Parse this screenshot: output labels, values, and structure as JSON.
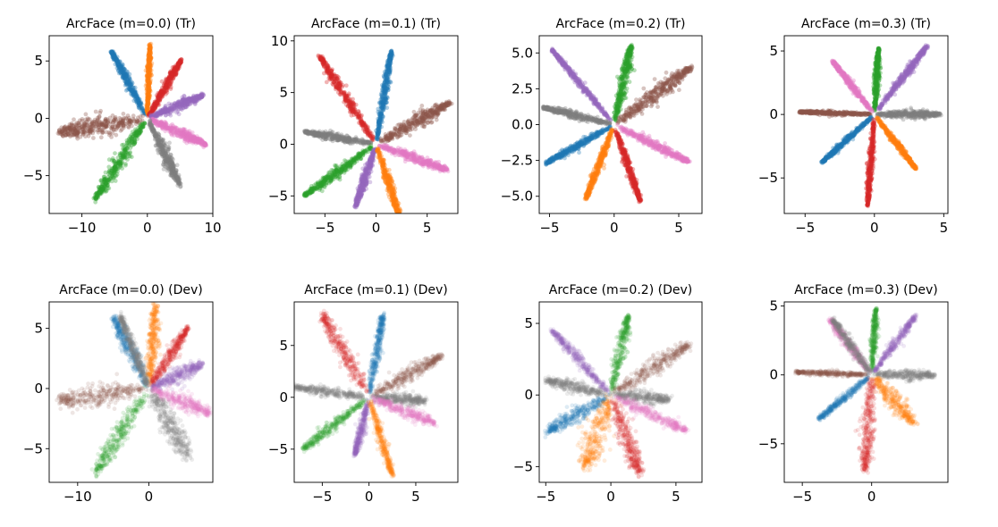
{
  "figure": {
    "background": "#ffffff"
  },
  "colors": {
    "blue": "#1f77b4",
    "orange": "#ff7f0e",
    "green": "#2ca02c",
    "red": "#d62728",
    "purple": "#9467bd",
    "brown": "#8c564b",
    "pink": "#e377c2",
    "gray": "#7f7f7f"
  },
  "chart_data": [
    {
      "type": "scatter",
      "title": "ArcFace (m=0.0) (Tr)",
      "xlim": [
        -15,
        10
      ],
      "ylim": [
        -8.3,
        7.2
      ],
      "xticks": [
        -10,
        0,
        10
      ],
      "yticks": [
        -5,
        0,
        5
      ],
      "alpha": 0.35,
      "series": [
        {
          "name": "class-blue",
          "color": "blue",
          "tip": [
            -5.5,
            5.8
          ],
          "halfwidth": 0.55,
          "noise": 0.25
        },
        {
          "name": "class-orange",
          "color": "orange",
          "tip": [
            0.4,
            6.5
          ],
          "halfwidth": 0.4,
          "noise": 0.2
        },
        {
          "name": "class-red",
          "color": "red",
          "tip": [
            5.2,
            5.1
          ],
          "halfwidth": 0.55,
          "noise": 0.25
        },
        {
          "name": "class-purple",
          "color": "purple",
          "tip": [
            8.5,
            2.0
          ],
          "halfwidth": 0.55,
          "noise": 0.25
        },
        {
          "name": "class-pink",
          "color": "pink",
          "tip": [
            9.0,
            -2.3
          ],
          "halfwidth": 0.55,
          "noise": 0.25
        },
        {
          "name": "class-gray",
          "color": "gray",
          "tip": [
            5.0,
            -5.8
          ],
          "halfwidth": 0.8,
          "noise": 0.3
        },
        {
          "name": "class-green",
          "color": "green",
          "tip": [
            -8.0,
            -7.0
          ],
          "halfwidth": 1.0,
          "noise": 0.35
        },
        {
          "name": "class-brown",
          "color": "brown",
          "tip": [
            -13.5,
            -1.2
          ],
          "halfwidth": 1.2,
          "noise": 0.4
        }
      ]
    },
    {
      "type": "scatter",
      "title": "ArcFace (m=0.1) (Tr)",
      "xlim": [
        -8,
        8
      ],
      "ylim": [
        -6.7,
        10.5
      ],
      "xticks": [
        -5,
        0,
        5
      ],
      "yticks": [
        -5,
        0,
        5,
        10
      ],
      "alpha": 0.35,
      "series": [
        {
          "name": "class-blue",
          "color": "blue",
          "tip": [
            1.5,
            9.0
          ],
          "halfwidth": 0.4,
          "noise": 0.2
        },
        {
          "name": "class-red",
          "color": "red",
          "tip": [
            -5.5,
            8.5
          ],
          "halfwidth": 0.55,
          "noise": 0.25
        },
        {
          "name": "class-brown",
          "color": "brown",
          "tip": [
            7.2,
            4.0
          ],
          "halfwidth": 0.8,
          "noise": 0.3
        },
        {
          "name": "class-gray",
          "color": "gray",
          "tip": [
            -7.0,
            1.2
          ],
          "halfwidth": 0.45,
          "noise": 0.2
        },
        {
          "name": "class-pink",
          "color": "pink",
          "tip": [
            7.0,
            -2.5
          ],
          "halfwidth": 0.55,
          "noise": 0.25
        },
        {
          "name": "class-green",
          "color": "green",
          "tip": [
            -7.0,
            -5.0
          ],
          "halfwidth": 0.55,
          "noise": 0.25
        },
        {
          "name": "class-purple",
          "color": "purple",
          "tip": [
            -2.0,
            -6.0
          ],
          "halfwidth": 0.45,
          "noise": 0.2
        },
        {
          "name": "class-orange",
          "color": "orange",
          "tip": [
            2.5,
            -7.5
          ],
          "halfwidth": 0.45,
          "noise": 0.2
        }
      ]
    },
    {
      "type": "scatter",
      "title": "ArcFace (m=0.2) (Tr)",
      "xlim": [
        -5.8,
        6.8
      ],
      "ylim": [
        -6.2,
        6.2
      ],
      "xticks": [
        -5,
        0,
        5
      ],
      "yticks": [
        -5.0,
        -2.5,
        0.0,
        2.5,
        5.0
      ],
      "ytick_decimals": 1,
      "alpha": 0.35,
      "series": [
        {
          "name": "class-green",
          "color": "green",
          "tip": [
            1.3,
            5.5
          ],
          "halfwidth": 0.45,
          "noise": 0.2
        },
        {
          "name": "class-purple",
          "color": "purple",
          "tip": [
            -4.8,
            5.2
          ],
          "halfwidth": 0.25,
          "noise": 0.12
        },
        {
          "name": "class-brown",
          "color": "brown",
          "tip": [
            6.0,
            4.0
          ],
          "halfwidth": 0.7,
          "noise": 0.3
        },
        {
          "name": "class-gray",
          "color": "gray",
          "tip": [
            -5.5,
            1.2
          ],
          "halfwidth": 0.3,
          "noise": 0.15
        },
        {
          "name": "class-blue",
          "color": "blue",
          "tip": [
            -5.3,
            -2.7
          ],
          "halfwidth": 0.3,
          "noise": 0.15
        },
        {
          "name": "class-pink",
          "color": "pink",
          "tip": [
            5.8,
            -2.6
          ],
          "halfwidth": 0.4,
          "noise": 0.18
        },
        {
          "name": "class-orange",
          "color": "orange",
          "tip": [
            -2.2,
            -5.2
          ],
          "halfwidth": 0.3,
          "noise": 0.15
        },
        {
          "name": "class-red",
          "color": "red",
          "tip": [
            2.0,
            -5.3
          ],
          "halfwidth": 0.3,
          "noise": 0.15
        }
      ]
    },
    {
      "type": "scatter",
      "title": "ArcFace (m=0.3) (Tr)",
      "xlim": [
        -6.5,
        5.3
      ],
      "ylim": [
        -7.8,
        6.2
      ],
      "xticks": [
        -5,
        0,
        5
      ],
      "yticks": [
        -5,
        0,
        5
      ],
      "alpha": 0.35,
      "series": [
        {
          "name": "class-green",
          "color": "green",
          "tip": [
            0.3,
            5.2
          ],
          "halfwidth": 0.25,
          "noise": 0.12
        },
        {
          "name": "class-purple",
          "color": "purple",
          "tip": [
            3.8,
            5.4
          ],
          "halfwidth": 0.3,
          "noise": 0.15
        },
        {
          "name": "class-pink",
          "color": "pink",
          "tip": [
            -3.0,
            4.2
          ],
          "halfwidth": 0.25,
          "noise": 0.12
        },
        {
          "name": "class-brown",
          "color": "brown",
          "tip": [
            -5.5,
            0.2
          ],
          "halfwidth": 0.2,
          "noise": 0.1
        },
        {
          "name": "class-gray",
          "color": "gray",
          "tip": [
            4.7,
            0.0
          ],
          "halfwidth": 0.4,
          "noise": 0.18
        },
        {
          "name": "class-blue",
          "color": "blue",
          "tip": [
            -3.8,
            -3.8
          ],
          "halfwidth": 0.25,
          "noise": 0.12
        },
        {
          "name": "class-orange",
          "color": "orange",
          "tip": [
            3.0,
            -4.3
          ],
          "halfwidth": 0.25,
          "noise": 0.12
        },
        {
          "name": "class-red",
          "color": "red",
          "tip": [
            -0.5,
            -7.2
          ],
          "halfwidth": 0.25,
          "noise": 0.12
        }
      ]
    },
    {
      "type": "scatter",
      "title": "ArcFace (m=0.0) (Dev)",
      "xlim": [
        -14,
        9
      ],
      "ylim": [
        -7.8,
        7.2
      ],
      "xticks": [
        -10,
        0
      ],
      "yticks": [
        -5,
        0,
        5
      ],
      "alpha": 0.15,
      "series": [
        {
          "name": "class-blue",
          "color": "blue",
          "tip": [
            -5.0,
            6.0
          ],
          "halfwidth": 0.9,
          "noise": 0.6
        },
        {
          "name": "class-orange",
          "color": "orange",
          "tip": [
            1.0,
            6.8
          ],
          "halfwidth": 0.9,
          "noise": 0.6
        },
        {
          "name": "class-red",
          "color": "red",
          "tip": [
            5.5,
            5.0
          ],
          "halfwidth": 0.7,
          "noise": 0.45
        },
        {
          "name": "class-purple",
          "color": "purple",
          "tip": [
            7.5,
            2.0
          ],
          "halfwidth": 0.8,
          "noise": 0.5
        },
        {
          "name": "class-pink",
          "color": "pink",
          "tip": [
            8.5,
            -2.0
          ],
          "halfwidth": 0.8,
          "noise": 0.5
        },
        {
          "name": "class-green",
          "color": "green",
          "tip": [
            -7.5,
            -7.0
          ],
          "halfwidth": 1.1,
          "noise": 0.6
        },
        {
          "name": "class-brown",
          "color": "brown",
          "tip": [
            -12.5,
            -1.0
          ],
          "halfwidth": 1.2,
          "noise": 0.6
        },
        {
          "name": "class-gray",
          "color": "gray",
          "tip": [
            5.5,
            -5.5
          ],
          "halfwidth": 1.4,
          "noise": 0.9
        },
        {
          "name": "class-gray-2",
          "color": "gray",
          "tip": [
            -4.0,
            6.0
          ],
          "halfwidth": 0.6,
          "noise": 0.5
        }
      ]
    },
    {
      "type": "scatter",
      "title": "ArcFace (m=0.1) (Dev)",
      "xlim": [
        -8,
        9.5
      ],
      "ylim": [
        -8.2,
        9.2
      ],
      "xticks": [
        -5,
        0,
        5
      ],
      "yticks": [
        -5,
        0,
        5
      ],
      "alpha": 0.15,
      "series": [
        {
          "name": "class-blue",
          "color": "blue",
          "tip": [
            1.5,
            8.0
          ],
          "halfwidth": 0.5,
          "noise": 0.35
        },
        {
          "name": "class-red",
          "color": "red",
          "tip": [
            -5.0,
            8.0
          ],
          "halfwidth": 0.9,
          "noise": 0.6
        },
        {
          "name": "class-brown",
          "color": "brown",
          "tip": [
            7.8,
            4.0
          ],
          "halfwidth": 0.9,
          "noise": 0.4
        },
        {
          "name": "class-gray",
          "color": "gray",
          "tip": [
            -8.0,
            1.0
          ],
          "halfwidth": 0.55,
          "noise": 0.35
        },
        {
          "name": "class-gray-2",
          "color": "gray",
          "tip": [
            6.0,
            -0.3
          ],
          "halfwidth": 0.6,
          "noise": 0.45
        },
        {
          "name": "class-pink",
          "color": "pink",
          "tip": [
            7.0,
            -2.5
          ],
          "halfwidth": 0.7,
          "noise": 0.45
        },
        {
          "name": "class-green",
          "color": "green",
          "tip": [
            -7.0,
            -5.0
          ],
          "halfwidth": 0.6,
          "noise": 0.35
        },
        {
          "name": "class-purple",
          "color": "purple",
          "tip": [
            -1.5,
            -5.5
          ],
          "halfwidth": 0.5,
          "noise": 0.3
        },
        {
          "name": "class-orange",
          "color": "orange",
          "tip": [
            2.5,
            -7.5
          ],
          "halfwidth": 0.5,
          "noise": 0.3
        }
      ]
    },
    {
      "type": "scatter",
      "title": "ArcFace (m=0.2) (Dev)",
      "xlim": [
        -5.5,
        7
      ],
      "ylim": [
        -6.1,
        6.5
      ],
      "xticks": [
        -5,
        0,
        5
      ],
      "yticks": [
        -5,
        0,
        5
      ],
      "alpha": 0.15,
      "series": [
        {
          "name": "class-green",
          "color": "green",
          "tip": [
            1.3,
            5.5
          ],
          "halfwidth": 0.55,
          "noise": 0.3
        },
        {
          "name": "class-purple",
          "color": "purple",
          "tip": [
            -4.5,
            4.5
          ],
          "halfwidth": 0.4,
          "noise": 0.3
        },
        {
          "name": "class-brown",
          "color": "brown",
          "tip": [
            6.0,
            3.5
          ],
          "halfwidth": 0.7,
          "noise": 0.35
        },
        {
          "name": "class-gray",
          "color": "gray",
          "tip": [
            -5.0,
            1.0
          ],
          "halfwidth": 0.45,
          "noise": 0.3
        },
        {
          "name": "class-gray-2",
          "color": "gray",
          "tip": [
            4.5,
            -0.3
          ],
          "halfwidth": 0.5,
          "noise": 0.35
        },
        {
          "name": "class-blue",
          "color": "blue",
          "tip": [
            -4.8,
            -2.5
          ],
          "halfwidth": 0.6,
          "noise": 0.45
        },
        {
          "name": "class-pink",
          "color": "pink",
          "tip": [
            5.8,
            -2.5
          ],
          "halfwidth": 0.5,
          "noise": 0.35
        },
        {
          "name": "class-orange",
          "color": "orange",
          "tip": [
            -2.0,
            -5.0
          ],
          "halfwidth": 1.2,
          "noise": 0.6
        },
        {
          "name": "class-red",
          "color": "red",
          "tip": [
            2.2,
            -5.5
          ],
          "halfwidth": 0.7,
          "noise": 0.45
        }
      ]
    },
    {
      "type": "scatter",
      "title": "ArcFace (m=0.3) (Dev)",
      "xlim": [
        -6.3,
        5.5
      ],
      "ylim": [
        -7.8,
        5.3
      ],
      "xticks": [
        -5,
        0
      ],
      "yticks": [
        -5,
        0,
        5
      ],
      "alpha": 0.15,
      "series": [
        {
          "name": "class-green",
          "color": "green",
          "tip": [
            0.3,
            4.8
          ],
          "halfwidth": 0.3,
          "noise": 0.18
        },
        {
          "name": "class-purple",
          "color": "purple",
          "tip": [
            3.2,
            4.3
          ],
          "halfwidth": 0.35,
          "noise": 0.22
        },
        {
          "name": "class-pink",
          "color": "pink",
          "tip": [
            -3.0,
            4.0
          ],
          "halfwidth": 0.35,
          "noise": 0.25
        },
        {
          "name": "class-brown",
          "color": "brown",
          "tip": [
            -5.5,
            0.2
          ],
          "halfwidth": 0.22,
          "noise": 0.15
        },
        {
          "name": "class-gray",
          "color": "gray",
          "tip": [
            4.5,
            0.0
          ],
          "halfwidth": 0.45,
          "noise": 0.3
        },
        {
          "name": "class-gray-2",
          "color": "gray",
          "tip": [
            -2.8,
            4.0
          ],
          "halfwidth": 0.35,
          "noise": 0.25
        },
        {
          "name": "class-blue",
          "color": "blue",
          "tip": [
            -3.8,
            -3.2
          ],
          "halfwidth": 0.3,
          "noise": 0.2
        },
        {
          "name": "class-orange",
          "color": "orange",
          "tip": [
            3.0,
            -3.5
          ],
          "halfwidth": 0.8,
          "noise": 0.4
        },
        {
          "name": "class-red",
          "color": "red",
          "tip": [
            -0.5,
            -7.0
          ],
          "halfwidth": 0.6,
          "noise": 0.35
        }
      ]
    }
  ]
}
